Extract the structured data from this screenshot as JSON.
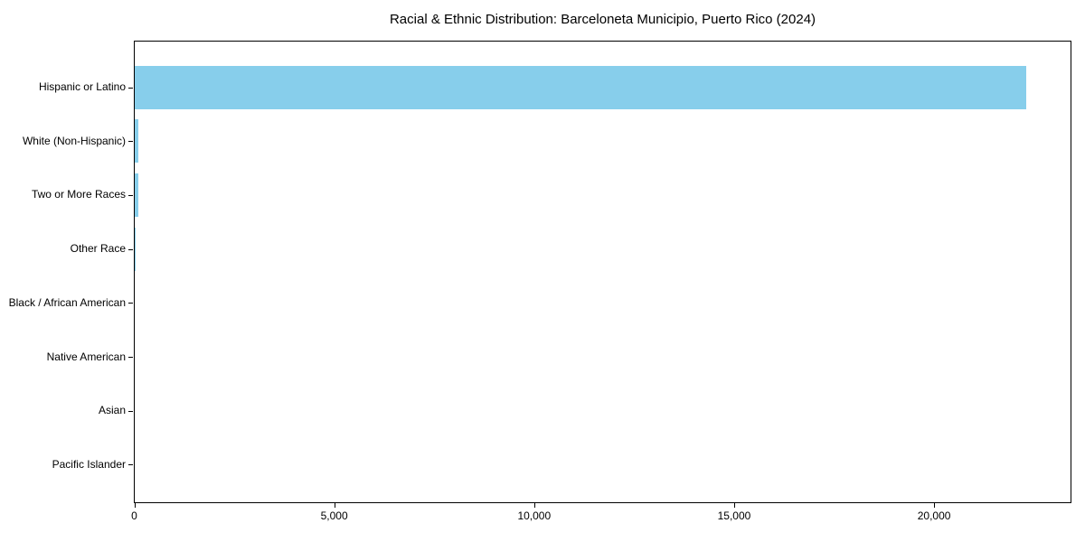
{
  "chart_data": {
    "type": "bar",
    "orientation": "horizontal",
    "title": "Racial & Ethnic Distribution: Barceloneta Municipio, Puerto Rico (2024)",
    "categories": [
      "Hispanic or Latino",
      "White (Non-Hispanic)",
      "Two or More Races",
      "Other Race",
      "Black / African American",
      "Native American",
      "Asian",
      "Pacific Islander"
    ],
    "values": [
      22300,
      100,
      85,
      15,
      0,
      0,
      0,
      0
    ],
    "xlabel": "",
    "ylabel": "",
    "xlim": [
      0,
      23400
    ],
    "xticks": [
      0,
      5000,
      10000,
      15000,
      20000
    ],
    "xtick_labels": [
      "0",
      "5,000",
      "10,000",
      "15,000",
      "20,000"
    ],
    "bar_color": "#87CEEB",
    "axis_color": "#000000",
    "text_color": "#000000",
    "background_color": "#FFFFFF",
    "grid": false,
    "legend_position": "none"
  }
}
